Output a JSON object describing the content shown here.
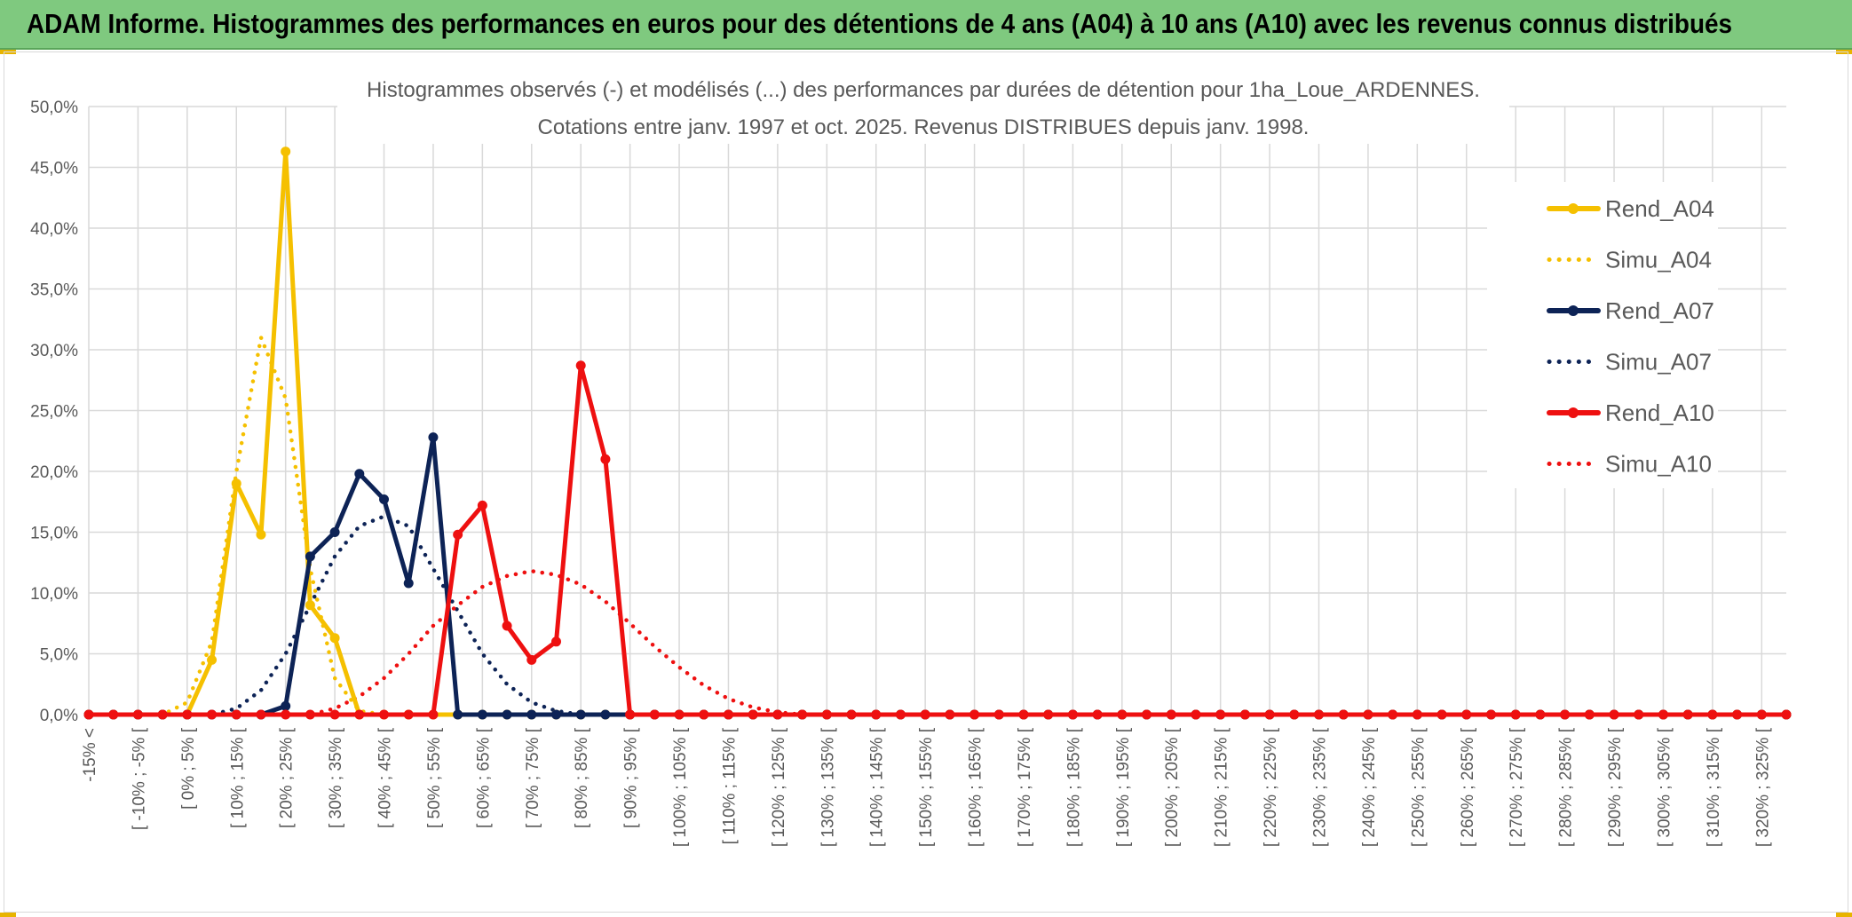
{
  "banner": {
    "title": "ADAM Informe. Histogrammes des performances en euros pour des détentions de 4 ans (A04) à 10 ans (A10) avec les revenus connus distribués",
    "color": "#7fc97f"
  },
  "chart_data": {
    "type": "line",
    "title": "Histogrammes observés (-) et modélisés (...) des performances par durées de détention pour 1ha_Loue_ARDENNES.",
    "subtitle": "Cotations entre janv. 1997 et oct. 2025. Revenus DISTRIBUES depuis janv. 1998.",
    "ylim": [
      0,
      50
    ],
    "ytick_labels": [
      "0,0%",
      "5,0%",
      "10,0%",
      "15,0%",
      "20,0%",
      "25,0%",
      "30,0%",
      "35,0%",
      "40,0%",
      "45,0%",
      "50,0%"
    ],
    "grid": true,
    "legend_position": "right",
    "x_labels": [
      "-15% <",
      "[ -10% ; -5% [",
      "[ 0% ; 5% [",
      "[ 10% ; 15% [",
      "[ 20% ; 25% [",
      "[ 30% ; 35% [",
      "[ 40% ; 45% [",
      "[ 50% ; 55% [",
      "[ 60% ; 65% [",
      "[ 70% ; 75% [",
      "[ 80% ; 85% [",
      "[ 90% ; 95% [",
      "[ 100% ; 105% [",
      "[ 110% ; 115% [",
      "[ 120% ; 125% [",
      "[ 130% ; 135% [",
      "[ 140% ; 145% [",
      "[ 150% ; 155% [",
      "[ 160% ; 165% [",
      "[ 170% ; 175% [",
      "[ 180% ; 185% [",
      "[ 190% ; 195% [",
      "[ 200% ; 205% [",
      "[ 210% ; 215% [",
      "[ 220% ; 225% [",
      "[ 230% ; 235% [",
      "[ 240% ; 245% [",
      "[ 250% ; 255% [",
      "[ 260% ; 265% [",
      "[ 270% ; 275% [",
      "[ 280% ; 285% [",
      "[ 290% ; 295% [",
      "[ 300% ; 305% [",
      "[ 310% ; 315% [",
      "[ 320% ; 325% ["
    ],
    "n_points": 70,
    "series": [
      {
        "name": "Rend_A04",
        "color": "#f5c000",
        "style": "solid",
        "markers": true,
        "values": [
          0,
          0,
          0,
          0,
          0,
          4.5,
          19,
          14.8,
          46.3,
          9,
          6.3,
          0,
          0,
          0,
          0,
          0
        ]
      },
      {
        "name": "Simu_A04",
        "color": "#f5c000",
        "style": "dotted",
        "markers": false,
        "values": [
          0,
          0,
          0,
          0,
          1,
          6,
          20,
          31,
          26,
          12,
          3,
          0.3,
          0,
          0
        ]
      },
      {
        "name": "Rend_A07",
        "color": "#0d2356",
        "style": "solid",
        "markers": true,
        "values": [
          0,
          0,
          0,
          0,
          0,
          0,
          0,
          0,
          0.7,
          13,
          15,
          19.8,
          17.7,
          10.8,
          22.8,
          0,
          0,
          0,
          0,
          0,
          0
        ]
      },
      {
        "name": "Simu_A07",
        "color": "#0d2356",
        "style": "dotted",
        "markers": false,
        "values": [
          0,
          0,
          0,
          0,
          0,
          0,
          0.5,
          2,
          5,
          9,
          13,
          15.5,
          16.3,
          15.5,
          12,
          8.5,
          5,
          2.5,
          1,
          0.3,
          0,
          0
        ]
      },
      {
        "name": "Rend_A10",
        "color": "#ee1010",
        "style": "solid",
        "markers": true,
        "values": [
          0,
          0,
          0,
          0,
          0,
          0,
          0,
          0,
          0,
          0,
          0,
          0,
          0,
          0,
          0,
          14.8,
          17.2,
          7.3,
          4.5,
          6,
          28.7,
          21,
          0,
          0,
          0,
          0,
          0,
          0,
          0,
          0,
          0,
          0,
          0,
          0,
          0,
          0,
          0,
          0,
          0,
          0,
          0,
          0,
          0,
          0,
          0,
          0,
          0,
          0,
          0,
          0,
          0,
          0,
          0,
          0,
          0,
          0,
          0,
          0,
          0,
          0,
          0,
          0,
          0,
          0,
          0,
          0,
          0,
          0,
          0,
          0
        ]
      },
      {
        "name": "Simu_A10",
        "color": "#ee1010",
        "style": "dotted",
        "markers": false,
        "values": [
          0,
          0,
          0,
          0,
          0,
          0,
          0,
          0,
          0,
          0,
          0.5,
          1.5,
          3,
          5,
          7.3,
          9,
          10.5,
          11.4,
          11.8,
          11.5,
          10.7,
          9.3,
          7.5,
          5.6,
          3.9,
          2.4,
          1.3,
          0.6,
          0.2,
          0,
          0
        ]
      }
    ]
  }
}
